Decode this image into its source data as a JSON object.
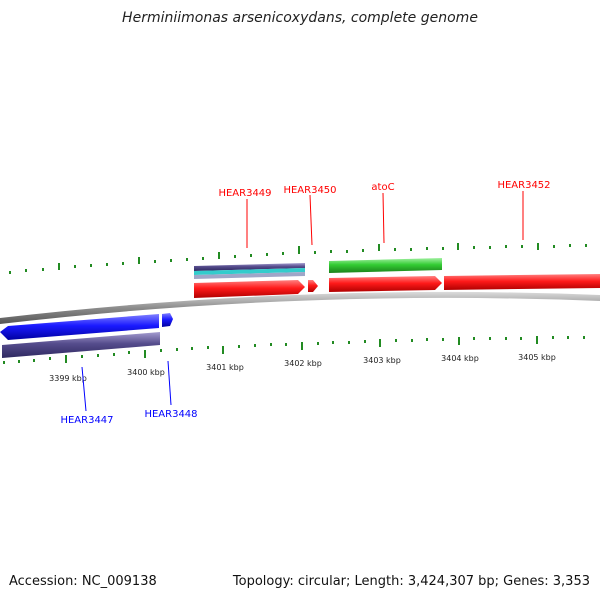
{
  "title": "Herminiimonas arsenicoxydans, complete genome",
  "accession": "Accession: NC_009138",
  "summary": "Topology: circular; Length: 3,424,307 bp; Genes: 3,353",
  "colors": {
    "forward_cds": "#ff1a1a",
    "reverse_cds": "#1a1aff",
    "rna": "#33cc33",
    "feature_purple": "#554c8c",
    "feature_cyan": "#33cccc",
    "tick": "#228b22",
    "backbone": "#8c8c8c"
  },
  "top_labels": [
    "HEAR3449",
    "HEAR3450",
    "atoC",
    "HEAR3452"
  ],
  "bottom_labels": [
    "HEAR3447",
    "HEAR3448"
  ],
  "kbp_labels": [
    "3399 kbp",
    "3400 kbp",
    "3401 kbp",
    "3402 kbp",
    "3403 kbp",
    "3404 kbp",
    "3405 kbp"
  ]
}
